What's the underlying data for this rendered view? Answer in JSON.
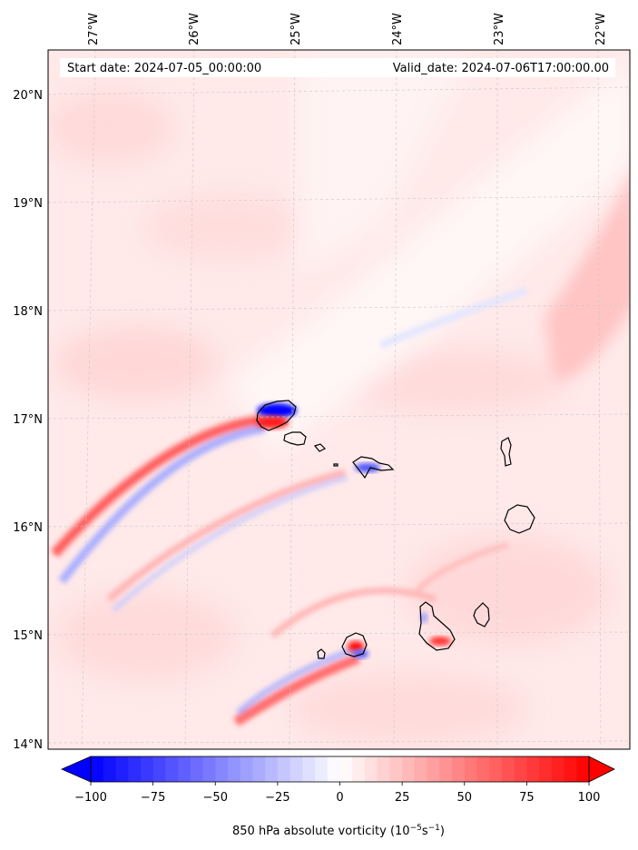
{
  "map": {
    "start_date": "Start date: 2024-07-05_00:00:00",
    "valid_date": "Valid_date: 2024-07-06T17:00:00.00",
    "lon_labels": [
      "27°W",
      "26°W",
      "25°W",
      "24°W",
      "23°W",
      "22°W"
    ],
    "lat_labels": [
      "20°N",
      "19°N",
      "18°N",
      "17°N",
      "16°N",
      "15°N",
      "14°N"
    ],
    "gridlines": true,
    "field": "850 hPa absolute vorticity"
  },
  "colorbar": {
    "range": [
      -100,
      100
    ],
    "tick_values": [
      -100,
      -75,
      -50,
      -25,
      0,
      25,
      50,
      75,
      100
    ],
    "tick_labels": [
      "−100",
      "−75",
      "−50",
      "−25",
      "0",
      "25",
      "50",
      "75",
      "100"
    ],
    "label_main": "850 hPa absolute vorticity (10",
    "label_exp1": "−5",
    "label_mid": "s",
    "label_exp2": "−1",
    "label_end": ")",
    "neg_color": "#0000ff",
    "pos_color": "#ff0000",
    "mid_color": "#ffffff",
    "extend": "both"
  }
}
